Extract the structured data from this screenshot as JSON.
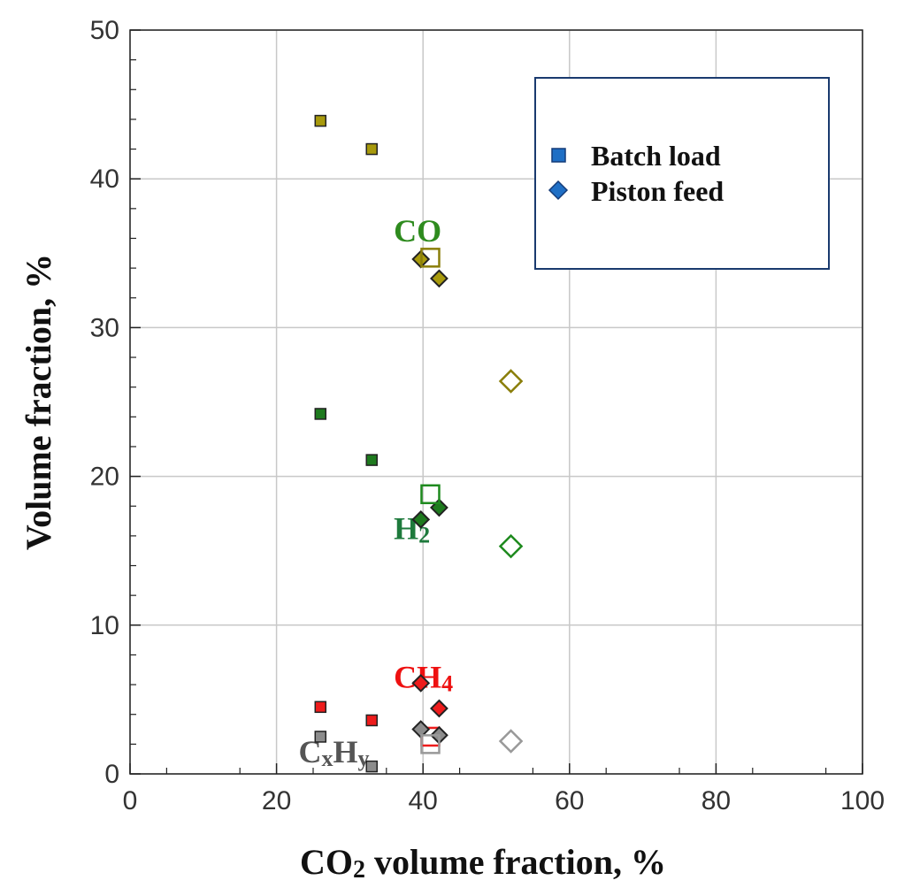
{
  "chart_data": {
    "type": "scatter",
    "xlabel_main": "CO",
    "xlabel_sub": "2",
    "xlabel_rest": " volume fraction, %",
    "ylabel": "Volume fraction, %",
    "xlim": [
      0,
      100
    ],
    "ylim": [
      0,
      50
    ],
    "x_ticks": [
      0,
      20,
      40,
      60,
      80,
      100
    ],
    "y_ticks": [
      0,
      10,
      20,
      30,
      40,
      50
    ],
    "grid": true,
    "legend": {
      "placement": "top-right",
      "entries": [
        {
          "label": "Batch load",
          "marker": "square",
          "color": "#1f6fc5"
        },
        {
          "label": "Piston feed",
          "marker": "diamond",
          "color": "#1f6fc5"
        }
      ]
    },
    "series_labels": [
      {
        "main": "CO",
        "sub": "",
        "color": "#2e8b1e",
        "at": [
          36,
          36.5
        ]
      },
      {
        "main": "H",
        "sub": "2",
        "color": "#1e7a3c",
        "at": [
          36,
          16.5
        ]
      },
      {
        "main": "CH",
        "sub": "4",
        "color": "#ee1111",
        "at": [
          36,
          6.5
        ]
      },
      {
        "main": "C",
        "sub": "x",
        "main2": "H",
        "sub2": "y",
        "color": "#555555",
        "at": [
          23,
          1.5
        ]
      }
    ],
    "series": [
      {
        "name": "CO",
        "color": "#a89a0c",
        "outline": "#8a7e0a",
        "batch_small": [
          [
            26,
            43.9
          ],
          [
            33,
            42
          ]
        ],
        "piston_small": [
          [
            39.7,
            34.6
          ],
          [
            42.2,
            33.3
          ]
        ],
        "batch_large": [
          [
            41,
            34.7
          ]
        ],
        "piston_large": [
          [
            52,
            26.4
          ]
        ]
      },
      {
        "name": "H2",
        "color": "#1e7a1e",
        "outline": "#1e8a1e",
        "batch_small": [
          [
            26,
            24.2
          ],
          [
            33,
            21.1
          ]
        ],
        "piston_small": [
          [
            39.7,
            17.1
          ],
          [
            42.2,
            17.9
          ]
        ],
        "batch_large": [
          [
            41,
            18.8
          ]
        ],
        "piston_large": [
          [
            52,
            15.3
          ]
        ]
      },
      {
        "name": "CH4",
        "color": "#ee1c1c",
        "outline": "#ee1c1c",
        "batch_small": [
          [
            26,
            4.5
          ],
          [
            33,
            3.6
          ]
        ],
        "piston_small": [
          [
            39.7,
            6.1
          ],
          [
            42.2,
            4.4
          ]
        ],
        "batch_large": [
          [
            41,
            2.5
          ]
        ],
        "piston_large": []
      },
      {
        "name": "CxHy",
        "color": "#8c8c8c",
        "outline": "#999999",
        "batch_small": [
          [
            26,
            2.5
          ],
          [
            33,
            0.5
          ]
        ],
        "piston_small": [
          [
            39.7,
            3.0
          ],
          [
            42.2,
            2.6
          ]
        ],
        "batch_large": [
          [
            41,
            2.0
          ]
        ],
        "piston_large": [
          [
            52,
            2.2
          ]
        ]
      }
    ]
  }
}
